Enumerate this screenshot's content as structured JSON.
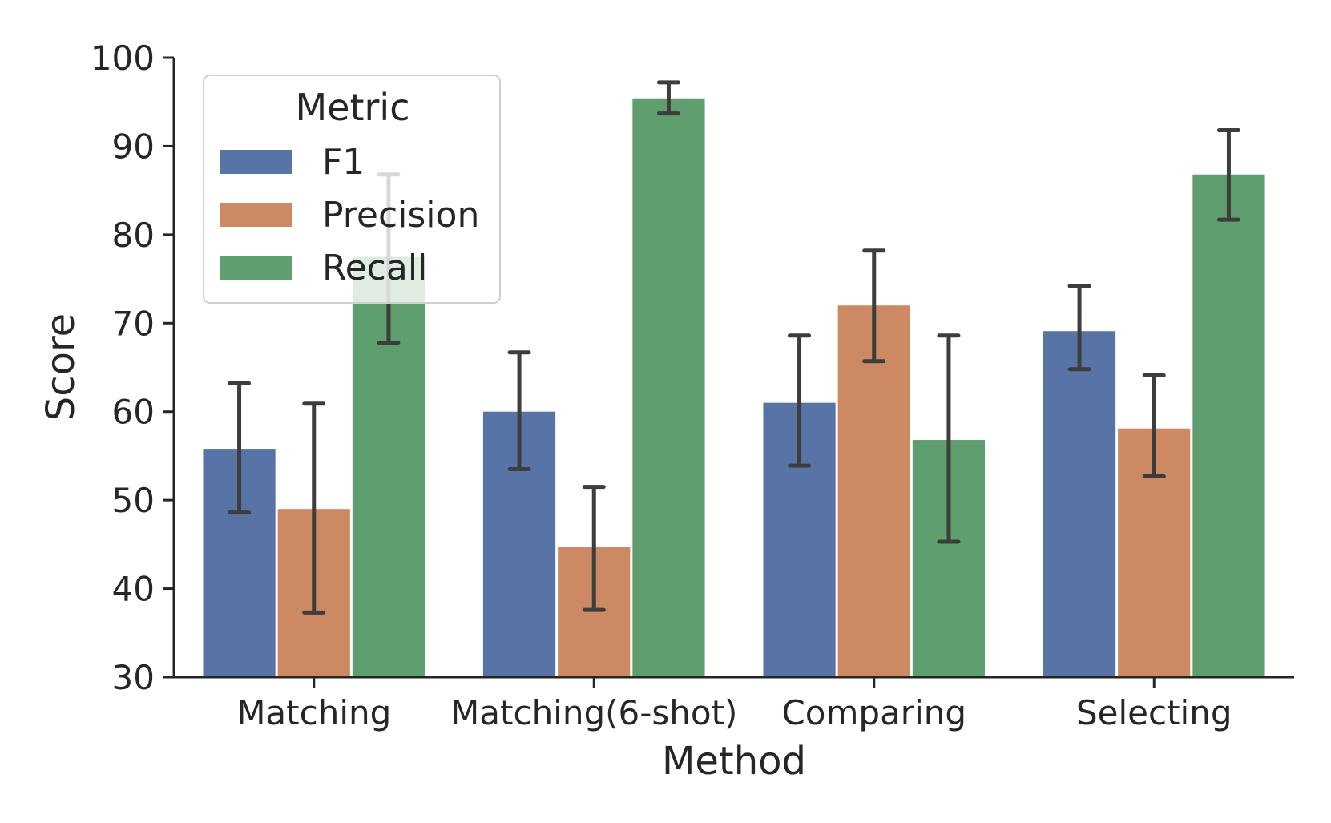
{
  "chart_data": {
    "type": "bar",
    "xlabel": "Method",
    "ylabel": "Score",
    "ylim": [
      30,
      100
    ],
    "yticks": [
      30,
      40,
      50,
      60,
      70,
      80,
      90,
      100
    ],
    "categories": [
      "Matching",
      "Matching(6-shot)",
      "Comparing",
      "Selecting"
    ],
    "legend": {
      "title": "Metric",
      "position": "upper-left"
    },
    "grid": false,
    "series": [
      {
        "name": "F1",
        "color": "#5874a6",
        "values": [
          55.8,
          60.0,
          61.0,
          69.1
        ],
        "err_low": [
          48.6,
          53.5,
          53.9,
          64.8
        ],
        "err_high": [
          63.2,
          66.7,
          68.6,
          74.2
        ]
      },
      {
        "name": "Precision",
        "color": "#cc8963",
        "values": [
          49.0,
          44.7,
          72.0,
          58.1
        ],
        "err_low": [
          37.3,
          37.6,
          65.7,
          52.7
        ],
        "err_high": [
          60.9,
          51.5,
          78.2,
          64.1
        ]
      },
      {
        "name": "Recall",
        "color": "#5f9e6e",
        "values": [
          77.5,
          95.4,
          56.8,
          86.8
        ],
        "err_low": [
          67.8,
          93.7,
          45.3,
          81.7
        ],
        "err_high": [
          86.8,
          97.2,
          68.6,
          91.8
        ]
      }
    ]
  }
}
